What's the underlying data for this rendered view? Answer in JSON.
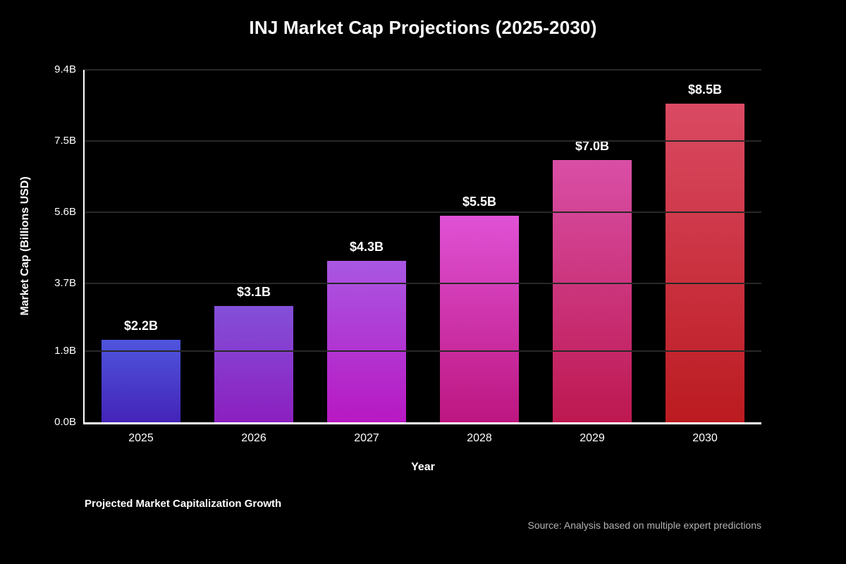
{
  "title": "INJ Market Cap Projections (2025-2030)",
  "chart_data": {
    "type": "bar",
    "categories": [
      "2025",
      "2026",
      "2027",
      "2028",
      "2029",
      "2030"
    ],
    "values": [
      2.2,
      3.1,
      4.3,
      5.5,
      7.0,
      8.5
    ],
    "bar_labels": [
      "$2.2B",
      "$3.1B",
      "$4.3B",
      "$5.5B",
      "$7.0B",
      "$8.5B"
    ],
    "title": "INJ Market Cap Projections (2025-2030)",
    "xlabel": "Year",
    "ylabel": "Market Cap (Billions USD)",
    "ylim": [
      0,
      9.4
    ],
    "yticks": [
      {
        "value": 0.0,
        "label": "0.0B"
      },
      {
        "value": 1.9,
        "label": "1.9B"
      },
      {
        "value": 3.7,
        "label": "3.7B"
      },
      {
        "value": 5.6,
        "label": "5.6B"
      },
      {
        "value": 7.5,
        "label": "7.5B"
      },
      {
        "value": 9.4,
        "label": "9.4B"
      }
    ],
    "grid": "horizontal",
    "legend": "none",
    "bar_gradients": [
      [
        "#4f55dd",
        "#4424b8"
      ],
      [
        "#8350d8",
        "#8c1fc0"
      ],
      [
        "#a957e3",
        "#b818c2"
      ],
      [
        "#df52d5",
        "#bd1680"
      ],
      [
        "#d94fa6",
        "#bd1850"
      ],
      [
        "#da4a63",
        "#bb1b20"
      ]
    ]
  },
  "footer": {
    "left_note": "Projected Market Capitalization Growth",
    "source": "Source: Analysis based on multiple expert predictions"
  },
  "colors": {
    "background": "#000000",
    "axis_line": "#ffffff",
    "gridline": "#282828",
    "text": "#ffffff",
    "muted_text": "#b3b3b3"
  }
}
